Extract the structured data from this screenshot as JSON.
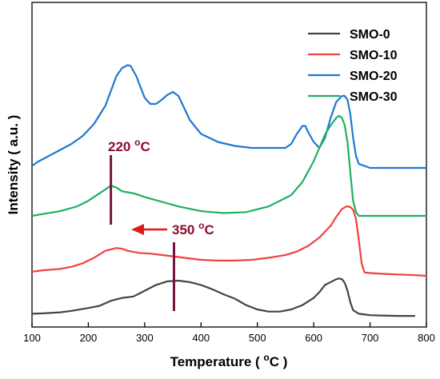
{
  "chart_data": {
    "type": "line",
    "xlabel_main": "Temperature ( ",
    "xlabel_sup": "o",
    "xlabel_unit": "C )",
    "ylabel": "Intensity ( a.u. )",
    "xlim": [
      100,
      800
    ],
    "xticks": [
      "100",
      "200",
      "300",
      "400",
      "500",
      "600",
      "700",
      "800"
    ],
    "y_ticks_shown": false,
    "grid": false,
    "legend_position": "top-right",
    "series": [
      {
        "name": "SMO-0",
        "color": "#444444",
        "x": [
          100,
          120,
          150,
          170,
          200,
          220,
          240,
          260,
          280,
          300,
          320,
          340,
          360,
          380,
          400,
          420,
          440,
          460,
          480,
          500,
          520,
          540,
          560,
          580,
          600,
          610,
          620,
          630,
          640,
          645,
          650,
          655,
          660,
          665,
          670,
          680,
          700,
          720,
          750,
          780
        ],
        "y": [
          0.04,
          0.045,
          0.06,
          0.08,
          0.12,
          0.15,
          0.22,
          0.26,
          0.28,
          0.36,
          0.44,
          0.49,
          0.5,
          0.48,
          0.44,
          0.38,
          0.31,
          0.25,
          0.16,
          0.1,
          0.07,
          0.07,
          0.1,
          0.16,
          0.26,
          0.34,
          0.44,
          0.48,
          0.52,
          0.53,
          0.52,
          0.47,
          0.36,
          0.2,
          0.09,
          0.04,
          0.02,
          0.015,
          0.01,
          0.01
        ]
      },
      {
        "name": "SMO-10",
        "color": "#f04040",
        "x": [
          100,
          120,
          150,
          170,
          190,
          210,
          230,
          250,
          260,
          270,
          290,
          310,
          330,
          350,
          370,
          400,
          430,
          460,
          490,
          520,
          550,
          570,
          590,
          610,
          630,
          640,
          650,
          658,
          665,
          670,
          675,
          680,
          685,
          690,
          700,
          720,
          750,
          780,
          800
        ],
        "y": [
          0.06,
          0.08,
          0.1,
          0.13,
          0.18,
          0.26,
          0.36,
          0.4,
          0.39,
          0.36,
          0.33,
          0.32,
          0.3,
          0.28,
          0.26,
          0.23,
          0.22,
          0.22,
          0.23,
          0.26,
          0.3,
          0.35,
          0.43,
          0.55,
          0.72,
          0.85,
          0.96,
          1.0,
          0.99,
          0.95,
          0.82,
          0.52,
          0.18,
          0.05,
          0.04,
          0.03,
          0.02,
          0.01,
          0.0
        ]
      },
      {
        "name": "SMO-20",
        "color": "#1e78d2",
        "x": [
          100,
          110,
          130,
          150,
          170,
          190,
          210,
          230,
          250,
          260,
          270,
          275,
          285,
          300,
          310,
          320,
          330,
          340,
          350,
          360,
          370,
          380,
          400,
          430,
          460,
          490,
          520,
          550,
          560,
          570,
          580,
          585,
          590,
          600,
          610,
          620,
          630,
          640,
          650,
          655,
          660,
          665,
          670,
          675,
          680,
          700,
          750,
          800
        ],
        "y": [
          0.02,
          0.06,
          0.12,
          0.18,
          0.24,
          0.32,
          0.44,
          0.62,
          0.92,
          1.0,
          1.03,
          1.02,
          0.92,
          0.7,
          0.64,
          0.64,
          0.68,
          0.73,
          0.76,
          0.72,
          0.6,
          0.48,
          0.34,
          0.26,
          0.22,
          0.2,
          0.2,
          0.2,
          0.24,
          0.34,
          0.42,
          0.42,
          0.36,
          0.26,
          0.2,
          0.3,
          0.5,
          0.66,
          0.72,
          0.72,
          0.68,
          0.54,
          0.3,
          0.12,
          0.04,
          0.0,
          0.0,
          0.0
        ]
      },
      {
        "name": "SMO-30",
        "color": "#20b060",
        "x": [
          100,
          120,
          150,
          180,
          200,
          220,
          240,
          250,
          260,
          270,
          280,
          300,
          330,
          360,
          400,
          440,
          480,
          520,
          560,
          580,
          600,
          610,
          620,
          630,
          640,
          645,
          650,
          655,
          660,
          665,
          670,
          675,
          680,
          700,
          750,
          800
        ],
        "y": [
          0.0,
          0.02,
          0.05,
          0.1,
          0.16,
          0.24,
          0.32,
          0.3,
          0.26,
          0.25,
          0.24,
          0.2,
          0.15,
          0.1,
          0.05,
          0.03,
          0.04,
          0.1,
          0.22,
          0.36,
          0.58,
          0.72,
          0.86,
          0.96,
          1.04,
          1.06,
          1.04,
          0.96,
          0.78,
          0.46,
          0.16,
          0.04,
          0.0,
          0.0,
          0.0,
          0.0
        ]
      }
    ],
    "annotations": [
      {
        "text_main": "220 ",
        "text_sup": "o",
        "text_unit": "C",
        "color": "#8b0d2e"
      },
      {
        "text_main": "350 ",
        "text_sup": "o",
        "text_unit": "C",
        "color": "#8b0d2e"
      }
    ],
    "markers": [
      {
        "x": 240,
        "color": "#7b1040"
      },
      {
        "x": 352,
        "color": "#7b1040"
      }
    ],
    "arrow": {
      "color": "#e01818",
      "from_x": 210,
      "to_x": 165
    }
  }
}
